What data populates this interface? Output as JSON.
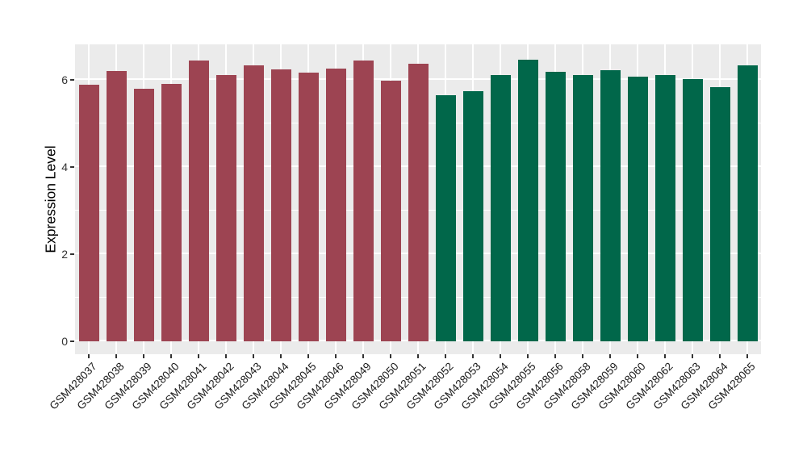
{
  "chart_data": {
    "type": "bar",
    "title": "",
    "xlabel": "",
    "ylabel": "Expression Level",
    "ylim": [
      -0.3,
      6.81
    ],
    "yticks": [
      0,
      2,
      4,
      6
    ],
    "yticks_minor": [
      1,
      3,
      5
    ],
    "grid": "on",
    "legend": "none",
    "panel_bg": "#EBEBEB",
    "grid_color": "#FFFFFF",
    "tick_color": "#333333",
    "categories": [
      "GSM428037",
      "GSM428038",
      "GSM428039",
      "GSM428040",
      "GSM428041",
      "GSM428042",
      "GSM428043",
      "GSM428044",
      "GSM428045",
      "GSM428046",
      "GSM428049",
      "GSM428050",
      "GSM428051",
      "GSM428052",
      "GSM428053",
      "GSM428054",
      "GSM428055",
      "GSM428056",
      "GSM428058",
      "GSM428059",
      "GSM428060",
      "GSM428062",
      "GSM428063",
      "GSM428064",
      "GSM428065"
    ],
    "values": [
      5.88,
      6.2,
      5.8,
      5.9,
      6.44,
      6.11,
      6.33,
      6.25,
      6.16,
      6.26,
      6.44,
      5.99,
      6.37,
      5.65,
      5.74,
      6.11,
      6.46,
      6.19,
      6.11,
      6.22,
      6.07,
      6.11,
      6.02,
      5.83,
      6.33
    ],
    "groups": [
      "group1",
      "group1",
      "group1",
      "group1",
      "group1",
      "group1",
      "group1",
      "group1",
      "group1",
      "group1",
      "group1",
      "group1",
      "group1",
      "group2",
      "group2",
      "group2",
      "group2",
      "group2",
      "group2",
      "group2",
      "group2",
      "group2",
      "group2",
      "group2",
      "group2"
    ],
    "group_colors": {
      "group1": "#9D4452",
      "group2": "#01674A"
    }
  }
}
